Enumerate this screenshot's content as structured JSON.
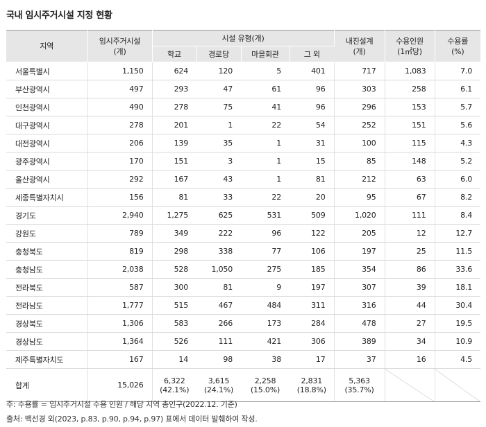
{
  "title": "국내 임시주거시설 지정 현황",
  "headers": {
    "region": "지역",
    "facilities_line1": "임시주거시설",
    "facilities_line2": "(개)",
    "type_group": "시설 유형(개)",
    "school": "학교",
    "senior_center": "경로당",
    "village_hall": "마을회관",
    "other": "그 외",
    "quake_line1": "내진설계",
    "quake_line2": "(개)",
    "capacity_line1": "수용인원",
    "capacity_line2": "(1㎡당)",
    "rate_line1": "수용률",
    "rate_line2": "(%)"
  },
  "rows": [
    {
      "region": "서울특별시",
      "total": "1,150",
      "school": "624",
      "senior": "120",
      "hall": "5",
      "other": "401",
      "quake": "717",
      "capacity": "1,083",
      "rate": "7.0"
    },
    {
      "region": "부산광역시",
      "total": "497",
      "school": "293",
      "senior": "47",
      "hall": "61",
      "other": "96",
      "quake": "303",
      "capacity": "258",
      "rate": "6.1"
    },
    {
      "region": "인천광역시",
      "total": "490",
      "school": "278",
      "senior": "75",
      "hall": "41",
      "other": "96",
      "quake": "296",
      "capacity": "153",
      "rate": "5.7"
    },
    {
      "region": "대구광역시",
      "total": "278",
      "school": "201",
      "senior": "1",
      "hall": "22",
      "other": "54",
      "quake": "252",
      "capacity": "151",
      "rate": "5.6"
    },
    {
      "region": "대전광역시",
      "total": "206",
      "school": "139",
      "senior": "35",
      "hall": "1",
      "other": "31",
      "quake": "100",
      "capacity": "115",
      "rate": "4.3"
    },
    {
      "region": "광주광역시",
      "total": "170",
      "school": "151",
      "senior": "3",
      "hall": "1",
      "other": "15",
      "quake": "85",
      "capacity": "148",
      "rate": "5.2"
    },
    {
      "region": "울산광역시",
      "total": "292",
      "school": "167",
      "senior": "43",
      "hall": "1",
      "other": "81",
      "quake": "212",
      "capacity": "63",
      "rate": "6.0"
    },
    {
      "region": "세종특별자치시",
      "total": "156",
      "school": "81",
      "senior": "33",
      "hall": "22",
      "other": "20",
      "quake": "95",
      "capacity": "67",
      "rate": "8.2"
    },
    {
      "region": "경기도",
      "total": "2,940",
      "school": "1,275",
      "senior": "625",
      "hall": "531",
      "other": "509",
      "quake": "1,020",
      "capacity": "111",
      "rate": "8.4"
    },
    {
      "region": "강원도",
      "total": "789",
      "school": "349",
      "senior": "222",
      "hall": "96",
      "other": "122",
      "quake": "205",
      "capacity": "12",
      "rate": "12.7"
    },
    {
      "region": "충청북도",
      "total": "819",
      "school": "298",
      "senior": "338",
      "hall": "77",
      "other": "106",
      "quake": "197",
      "capacity": "25",
      "rate": "11.5"
    },
    {
      "region": "충청남도",
      "total": "2,038",
      "school": "528",
      "senior": "1,050",
      "hall": "275",
      "other": "185",
      "quake": "354",
      "capacity": "86",
      "rate": "33.6"
    },
    {
      "region": "전라북도",
      "total": "587",
      "school": "300",
      "senior": "81",
      "hall": "9",
      "other": "197",
      "quake": "307",
      "capacity": "39",
      "rate": "18.1"
    },
    {
      "region": "전라남도",
      "total": "1,777",
      "school": "515",
      "senior": "467",
      "hall": "484",
      "other": "311",
      "quake": "316",
      "capacity": "44",
      "rate": "30.4"
    },
    {
      "region": "경상북도",
      "total": "1,306",
      "school": "583",
      "senior": "266",
      "hall": "173",
      "other": "284",
      "quake": "478",
      "capacity": "27",
      "rate": "19.5"
    },
    {
      "region": "경상남도",
      "total": "1,364",
      "school": "526",
      "senior": "111",
      "hall": "421",
      "other": "306",
      "quake": "389",
      "capacity": "34",
      "rate": "10.9"
    },
    {
      "region": "제주특별자치도",
      "total": "167",
      "school": "14",
      "senior": "98",
      "hall": "38",
      "other": "17",
      "quake": "37",
      "capacity": "16",
      "rate": "4.5"
    }
  ],
  "total_row": {
    "region": "합계",
    "total": "15,026",
    "school": "6,322",
    "school_pct": "(42.1%)",
    "senior": "3,615",
    "senior_pct": "(24.1%)",
    "hall": "2,258",
    "hall_pct": "(15.0%)",
    "other": "2,831",
    "other_pct": "(18.8%)",
    "quake": "5,363",
    "quake_pct": "(35.7%)"
  },
  "footnotes": {
    "note": "주: 수용률 = 임시주거시설 수용 인원 / 해당 지역 총인구(2022.12. 기준)",
    "source": "출처: 백선경 외(2023, p.83, p.90, p.94, p.97) 표에서 데이터 발췌하여 작성."
  }
}
